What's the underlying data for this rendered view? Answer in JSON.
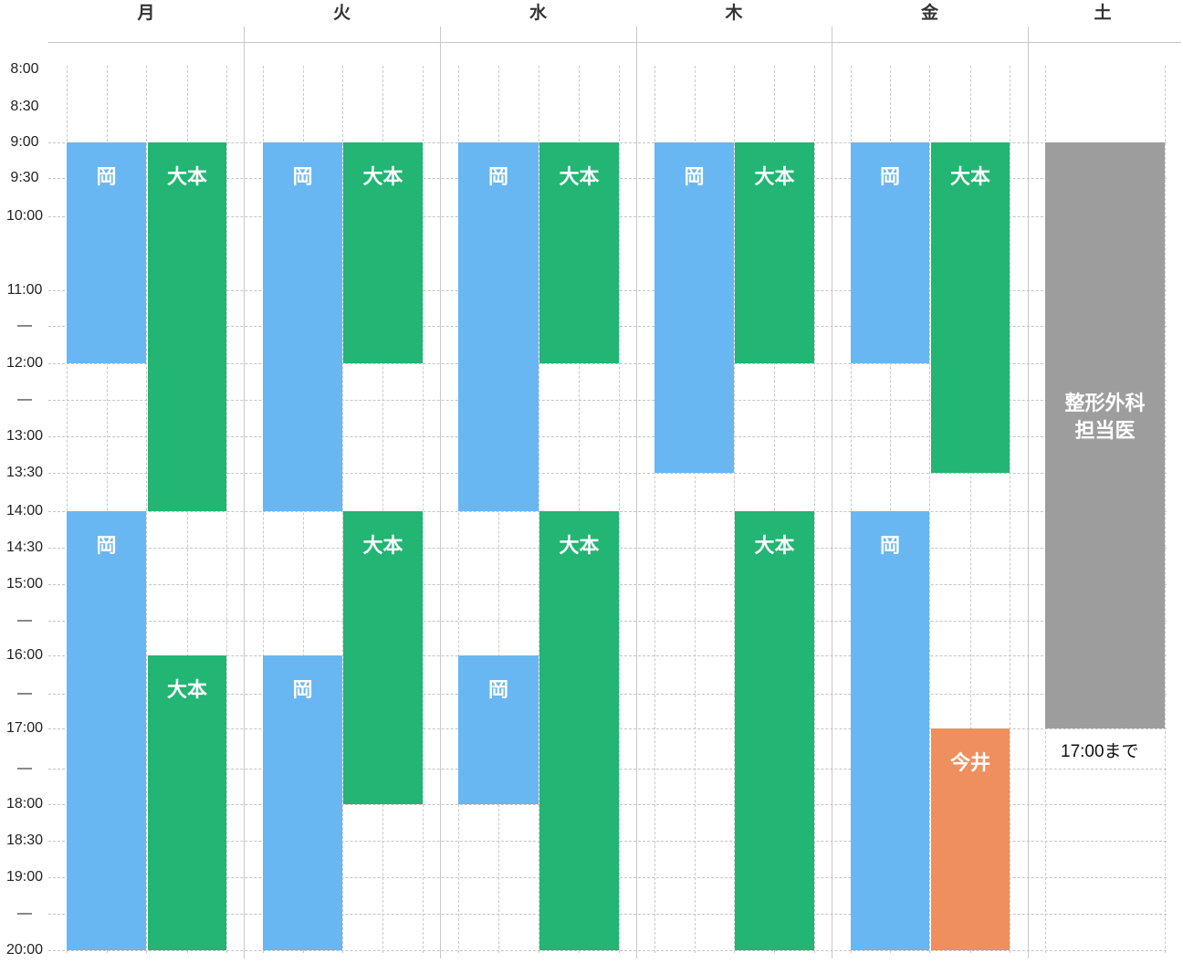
{
  "days": [
    "月",
    "火",
    "水",
    "木",
    "金",
    "土"
  ],
  "time_labels": [
    "8:00",
    "8:30",
    "9:00",
    "9:30",
    "10:00",
    "11:00",
    "—",
    "12:00",
    "—",
    "13:00",
    "13:30",
    "14:00",
    "14:30",
    "15:00",
    "—",
    "16:00",
    "—",
    "17:00",
    "—",
    "18:00",
    "18:30",
    "19:00",
    "—",
    "20:00"
  ],
  "shifts": [
    {
      "day": "月",
      "col": 1,
      "doctor": "岡",
      "start": "9:00",
      "end": "12:00",
      "color": "blue"
    },
    {
      "day": "月",
      "col": 2,
      "doctor": "大本",
      "start": "9:00",
      "end": "14:00",
      "color": "green"
    },
    {
      "day": "月",
      "col": 1,
      "doctor": "岡",
      "start": "14:00",
      "end": "20:00",
      "color": "blue"
    },
    {
      "day": "月",
      "col": 2,
      "doctor": "大本",
      "start": "16:00",
      "end": "20:00",
      "color": "green"
    },
    {
      "day": "火",
      "col": 1,
      "doctor": "岡",
      "start": "9:00",
      "end": "14:00",
      "color": "blue"
    },
    {
      "day": "火",
      "col": 2,
      "doctor": "大本",
      "start": "9:00",
      "end": "12:00",
      "color": "green"
    },
    {
      "day": "火",
      "col": 2,
      "doctor": "大本",
      "start": "14:00",
      "end": "18:00",
      "color": "green"
    },
    {
      "day": "火",
      "col": 1,
      "doctor": "岡",
      "start": "16:00",
      "end": "20:00",
      "color": "blue"
    },
    {
      "day": "水",
      "col": 1,
      "doctor": "岡",
      "start": "9:00",
      "end": "14:00",
      "color": "blue"
    },
    {
      "day": "水",
      "col": 2,
      "doctor": "大本",
      "start": "9:00",
      "end": "12:00",
      "color": "green"
    },
    {
      "day": "水",
      "col": 2,
      "doctor": "大本",
      "start": "14:00",
      "end": "20:00",
      "color": "green"
    },
    {
      "day": "水",
      "col": 1,
      "doctor": "岡",
      "start": "16:00",
      "end": "18:00",
      "color": "blue"
    },
    {
      "day": "木",
      "col": 1,
      "doctor": "岡",
      "start": "9:00",
      "end": "13:30",
      "color": "blue"
    },
    {
      "day": "木",
      "col": 2,
      "doctor": "大本",
      "start": "9:00",
      "end": "12:00",
      "color": "green"
    },
    {
      "day": "木",
      "col": 2,
      "doctor": "大本",
      "start": "14:00",
      "end": "20:00",
      "color": "green"
    },
    {
      "day": "金",
      "col": 1,
      "doctor": "岡",
      "start": "9:00",
      "end": "12:00",
      "color": "blue"
    },
    {
      "day": "金",
      "col": 2,
      "doctor": "大本",
      "start": "9:00",
      "end": "13:30",
      "color": "green"
    },
    {
      "day": "金",
      "col": 1,
      "doctor": "岡",
      "start": "14:00",
      "end": "20:00",
      "color": "blue"
    },
    {
      "day": "金",
      "col": 2,
      "doctor": "今井",
      "start": "17:00",
      "end": "20:00",
      "color": "orange"
    },
    {
      "day": "土",
      "col": 0,
      "doctor": "整形外科\n担当医",
      "start": "9:00",
      "end": "17:00",
      "color": "gray"
    }
  ],
  "saturday_note": "17:00まで",
  "colors": {
    "blue": "#68b7f2",
    "green": "#22b573",
    "orange": "#ef8f5d",
    "gray": "#9d9d9d"
  }
}
